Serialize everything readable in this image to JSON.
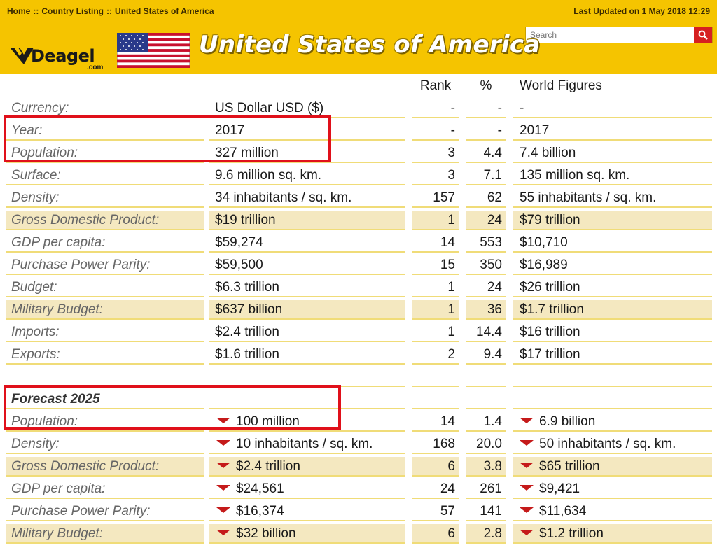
{
  "breadcrumb": {
    "items": [
      "Home",
      "Country Listing",
      "United States of America"
    ],
    "separator": "::"
  },
  "last_updated": "Last Updated on 1 May 2018 12:29",
  "search": {
    "placeholder": "Search"
  },
  "logo": {
    "text": "Deagel",
    "suffix": ".com"
  },
  "page_title": "United States of America",
  "colors": {
    "header_bg": "#f5c400",
    "highlight_row": "#f4e8c0",
    "row_divider": "#f0dc78",
    "down_arrow": "#c51a1a",
    "annotation_box": "#e0101a",
    "search_button": "#d62020"
  },
  "table": {
    "headers": [
      "",
      "",
      "Rank",
      "%",
      "World Figures"
    ],
    "rows": [
      {
        "label": "Currency:",
        "value": "US Dollar USD ($)",
        "rank": "-",
        "pct": "-",
        "world": "-",
        "highlight": false
      },
      {
        "label": "Year:",
        "value": "2017",
        "rank": "-",
        "pct": "-",
        "world": "2017",
        "highlight": false
      },
      {
        "label": "Population:",
        "value": "327 million",
        "rank": "3",
        "pct": "4.4",
        "world": "7.4 billion",
        "highlight": false
      },
      {
        "label": "Surface:",
        "value": "9.6 million sq. km.",
        "rank": "3",
        "pct": "7.1",
        "world": "135 million sq. km.",
        "highlight": false
      },
      {
        "label": "Density:",
        "value": "34 inhabitants / sq. km.",
        "rank": "157",
        "pct": "62",
        "world": "55 inhabitants / sq. km.",
        "highlight": false
      },
      {
        "label": "Gross Domestic Product:",
        "value": "$19 trillion",
        "rank": "1",
        "pct": "24",
        "world": "$79 trillion",
        "highlight": true
      },
      {
        "label": "GDP per capita:",
        "value": "$59,274",
        "rank": "14",
        "pct": "553",
        "world": "$10,710",
        "highlight": false
      },
      {
        "label": "Purchase Power Parity:",
        "value": "$59,500",
        "rank": "15",
        "pct": "350",
        "world": "$16,989",
        "highlight": false
      },
      {
        "label": "Budget:",
        "value": "$6.3 trillion",
        "rank": "1",
        "pct": "24",
        "world": "$26 trillion",
        "highlight": false
      },
      {
        "label": "Military Budget:",
        "value": "$637 billion",
        "rank": "1",
        "pct": "36",
        "world": "$1.7 trillion",
        "highlight": true
      },
      {
        "label": "Imports:",
        "value": "$2.4 trillion",
        "rank": "1",
        "pct": "14.4",
        "world": "$16 trillion",
        "highlight": false
      },
      {
        "label": "Exports:",
        "value": "$1.6 trillion",
        "rank": "2",
        "pct": "9.4",
        "world": "$17 trillion",
        "highlight": false
      }
    ],
    "forecast_title": "Forecast 2025",
    "forecast_rows": [
      {
        "label": "Population:",
        "value": "100 million",
        "rank": "14",
        "pct": "1.4",
        "world": "6.9 billion",
        "highlight": false
      },
      {
        "label": "Density:",
        "value": "10 inhabitants / sq. km.",
        "rank": "168",
        "pct": "20.0",
        "world": "50 inhabitants / sq. km.",
        "highlight": false
      },
      {
        "label": "Gross Domestic Product:",
        "value": "$2.4 trillion",
        "rank": "6",
        "pct": "3.8",
        "world": "$65 trillion",
        "highlight": true
      },
      {
        "label": "GDP per capita:",
        "value": "$24,561",
        "rank": "24",
        "pct": "261",
        "world": "$9,421",
        "highlight": false
      },
      {
        "label": "Purchase Power Parity:",
        "value": "$16,374",
        "rank": "57",
        "pct": "141",
        "world": "$11,634",
        "highlight": false
      },
      {
        "label": "Military Budget:",
        "value": "$32 billion",
        "rank": "6",
        "pct": "2.8",
        "world": "$1.2 trillion",
        "highlight": true
      }
    ]
  }
}
